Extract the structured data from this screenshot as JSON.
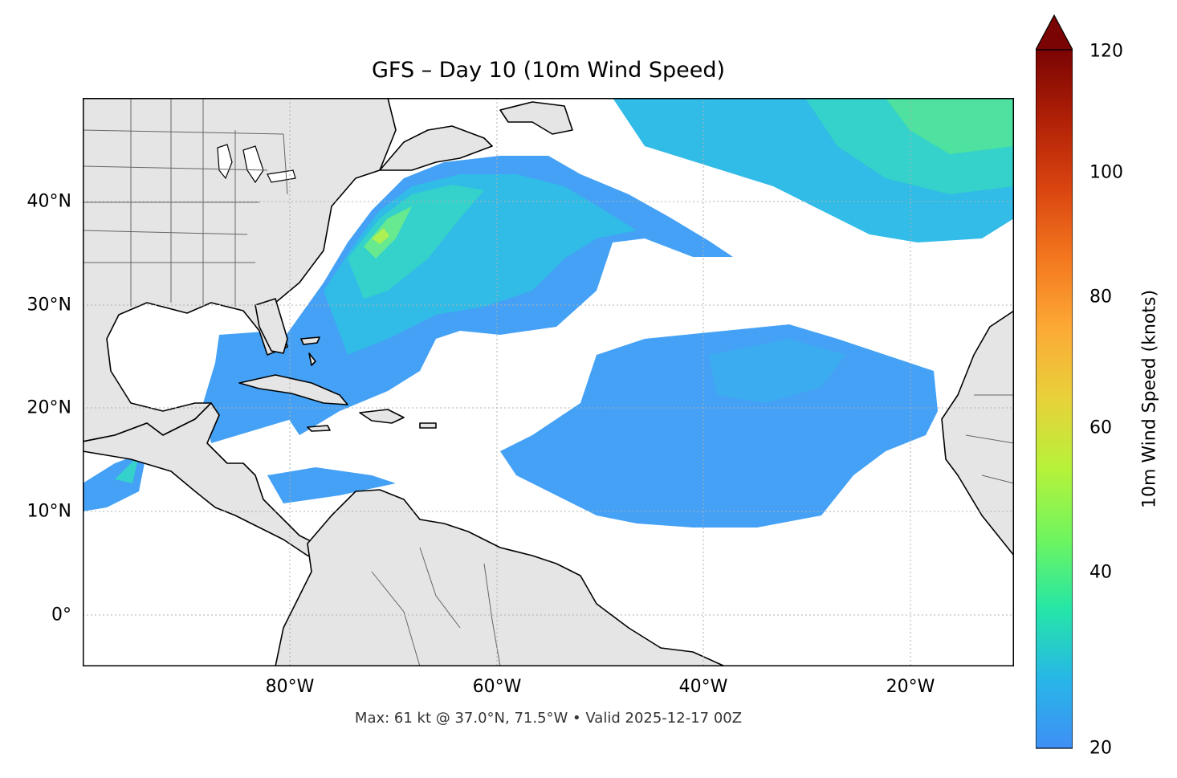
{
  "title": "GFS – Day 10 (10m Wind Speed)",
  "footer": "Max: 61 kt @ 37.0°N, 71.5°W • Valid 2025-12-17 00Z",
  "map": {
    "lon_range": [
      -100,
      -10
    ],
    "lat_range": [
      -5,
      50
    ],
    "lon_ticks": [
      "80°W",
      "60°W",
      "40°W",
      "20°W"
    ],
    "lat_ticks": [
      "40°N",
      "30°N",
      "20°N",
      "10°N",
      "0°"
    ],
    "land_color": "#e5e5e5",
    "ocean_color": "#ffffff",
    "gridlines": true
  },
  "colorbar": {
    "label": "10m Wind Speed (knots)",
    "ticks": [
      "120",
      "100",
      "80",
      "60",
      "40",
      "20"
    ],
    "range": [
      20,
      120
    ],
    "extend": "max",
    "colormap": "turbo"
  },
  "wind_max": {
    "speed_kt": 61,
    "lat": 37.0,
    "lon": -71.5
  }
}
